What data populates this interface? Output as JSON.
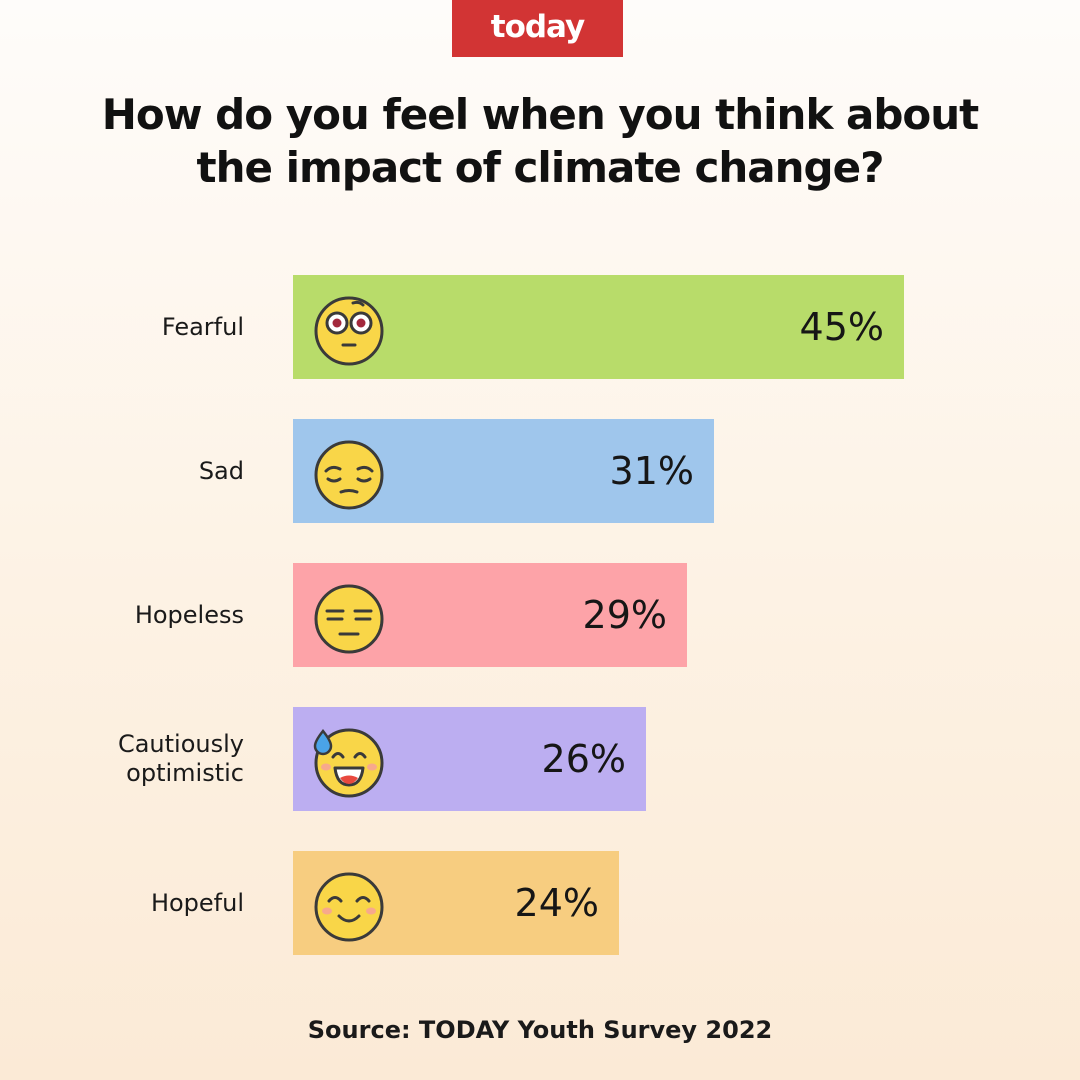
{
  "brand": {
    "logo_text": "today",
    "logo_color": "#d23434"
  },
  "chart_data": {
    "type": "bar",
    "orientation": "horizontal",
    "title_lines": [
      "How do you feel when you think about",
      "the impact of climate change?"
    ],
    "categories": [
      "Fearful",
      "Sad",
      "Hopeless",
      "Cautiously optimistic",
      "Hopeful"
    ],
    "category_lines": [
      [
        "Fearful"
      ],
      [
        "Sad"
      ],
      [
        "Hopeless"
      ],
      [
        "Cautiously",
        "optimistic"
      ],
      [
        "Hopeful"
      ]
    ],
    "values": [
      45,
      31,
      29,
      26,
      24
    ],
    "value_labels": [
      "45%",
      "31%",
      "29%",
      "26%",
      "24%"
    ],
    "colors": [
      "#b8dc6a",
      "#9fc6ec",
      "#fda3a8",
      "#bcaef1",
      "#f7cd80"
    ],
    "emoji_icons": [
      "flushed-face-icon",
      "pensive-face-icon",
      "expressionless-face-icon",
      "grinning-sweat-face-icon",
      "smiling-blush-face-icon"
    ],
    "unit": "%",
    "xlim": [
      0,
      45
    ],
    "grid": false,
    "legend": "none"
  },
  "source": "Source: TODAY Youth Survey 2022"
}
